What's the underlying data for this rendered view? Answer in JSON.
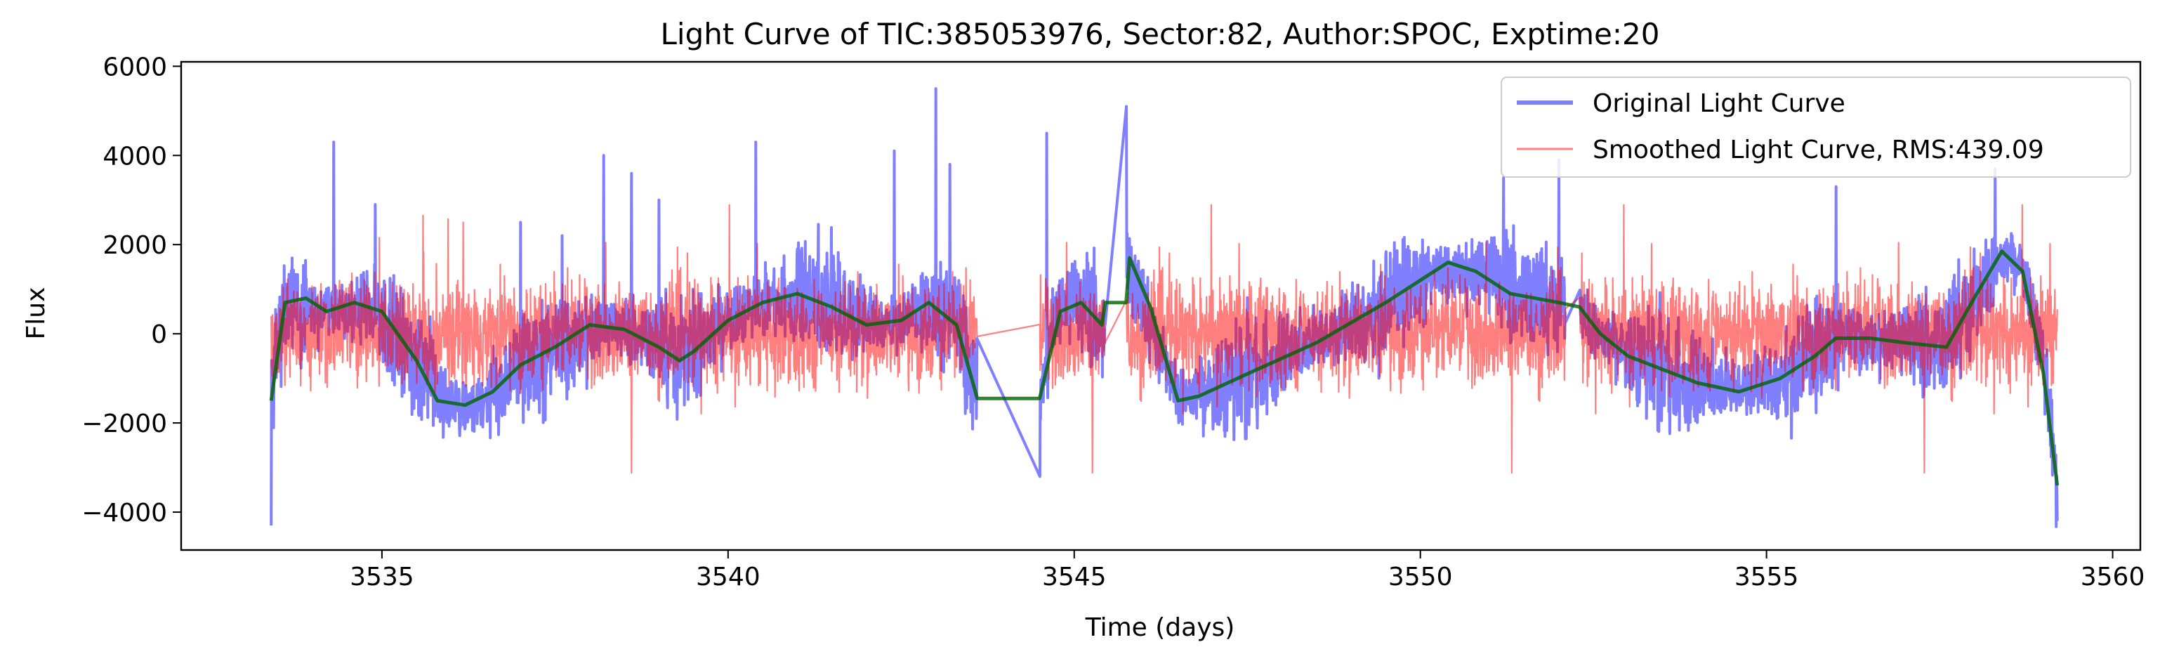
{
  "chart_data": {
    "type": "line",
    "title": "Light Curve of TIC:385053976, Sector:82, Author:SPOC, Exptime:20",
    "xlabel": "Time (days)",
    "ylabel": "Flux",
    "xlim": [
      3532.1,
      3560.4
    ],
    "ylim": [
      -4850,
      6100
    ],
    "x_ticks": [
      3535,
      3540,
      3545,
      3550,
      3555,
      3560
    ],
    "y_ticks": [
      -4000,
      -2000,
      0,
      2000,
      4000,
      6000
    ],
    "grid": false,
    "legend_position": "top-right",
    "time_range": [
      3533.4,
      3559.2
    ],
    "gaps": [
      [
        3543.6,
        3544.5
      ],
      [
        3545.45,
        3545.75
      ],
      [
        3552.1,
        3552.3
      ]
    ],
    "series": [
      {
        "name": "Original Light Curve",
        "color": "#0000ff",
        "alpha": 0.5,
        "noise_amplitude": 900,
        "baseline_points": [
          [
            3533.4,
            -1400
          ],
          [
            3533.6,
            700
          ],
          [
            3534.0,
            600
          ],
          [
            3534.5,
            600
          ],
          [
            3535.0,
            300
          ],
          [
            3535.5,
            -700
          ],
          [
            3536.0,
            -1700
          ],
          [
            3536.5,
            -1500
          ],
          [
            3537.0,
            -800
          ],
          [
            3537.5,
            -300
          ],
          [
            3538.0,
            100
          ],
          [
            3538.5,
            100
          ],
          [
            3539.0,
            -200
          ],
          [
            3539.3,
            -500
          ],
          [
            3539.5,
            -300
          ],
          [
            3540.0,
            300
          ],
          [
            3540.5,
            700
          ],
          [
            3541.0,
            900
          ],
          [
            3541.5,
            700
          ],
          [
            3542.0,
            300
          ],
          [
            3542.5,
            300
          ],
          [
            3543.0,
            600
          ],
          [
            3543.3,
            300
          ],
          [
            3543.6,
            -1100
          ],
          [
            3544.5,
            -1500
          ],
          [
            3544.7,
            400
          ],
          [
            3545.0,
            700
          ],
          [
            3545.3,
            500
          ],
          [
            3545.45,
            -200
          ],
          [
            3545.75,
            1600
          ],
          [
            3546.0,
            600
          ],
          [
            3546.5,
            -1400
          ],
          [
            3547.0,
            -1300
          ],
          [
            3548.0,
            -500
          ],
          [
            3549.0,
            200
          ],
          [
            3549.5,
            700
          ],
          [
            3550.0,
            1200
          ],
          [
            3550.5,
            1500
          ],
          [
            3551.0,
            1300
          ],
          [
            3551.5,
            900
          ],
          [
            3552.1,
            700
          ],
          [
            3552.3,
            600
          ],
          [
            3552.5,
            100
          ],
          [
            3553.0,
            -500
          ],
          [
            3554.0,
            -1100
          ],
          [
            3554.5,
            -1200
          ],
          [
            3555.0,
            -1100
          ],
          [
            3555.5,
            -700
          ],
          [
            3556.0,
            -100
          ],
          [
            3556.5,
            -100
          ],
          [
            3557.0,
            -200
          ],
          [
            3557.5,
            -300
          ],
          [
            3558.0,
            800
          ],
          [
            3558.4,
            1700
          ],
          [
            3558.7,
            1500
          ],
          [
            3559.0,
            -600
          ],
          [
            3559.2,
            -3400
          ]
        ],
        "spikes": [
          [
            3533.4,
            -4300
          ],
          [
            3534.3,
            4300
          ],
          [
            3534.9,
            2900
          ],
          [
            3537.0,
            2500
          ],
          [
            3537.6,
            2200
          ],
          [
            3538.2,
            4000
          ],
          [
            3538.6,
            3600
          ],
          [
            3539.0,
            3000
          ],
          [
            3540.4,
            4300
          ],
          [
            3542.4,
            4100
          ],
          [
            3543.0,
            5500
          ],
          [
            3543.2,
            3800
          ],
          [
            3543.6,
            -3200
          ],
          [
            3544.6,
            4500
          ],
          [
            3545.5,
            2000
          ],
          [
            3545.75,
            5100
          ],
          [
            3551.2,
            3500
          ],
          [
            3552.0,
            3900
          ],
          [
            3556.0,
            3300
          ],
          [
            3558.3,
            3700
          ],
          [
            3559.2,
            -4200
          ]
        ]
      },
      {
        "name": "Smoothed Light Curve, RMS:439.09",
        "color": "#ff0000",
        "alpha": 0.5,
        "noise_amplitude": 1200
      },
      {
        "name": "",
        "color": "#006400",
        "points": [
          [
            3533.4,
            -1500
          ],
          [
            3533.6,
            700
          ],
          [
            3533.9,
            800
          ],
          [
            3534.2,
            500
          ],
          [
            3534.6,
            700
          ],
          [
            3535.0,
            500
          ],
          [
            3535.5,
            -600
          ],
          [
            3535.8,
            -1500
          ],
          [
            3536.2,
            -1600
          ],
          [
            3536.6,
            -1300
          ],
          [
            3537.0,
            -700
          ],
          [
            3537.5,
            -300
          ],
          [
            3538.0,
            200
          ],
          [
            3538.5,
            100
          ],
          [
            3539.0,
            -300
          ],
          [
            3539.3,
            -600
          ],
          [
            3539.5,
            -400
          ],
          [
            3540.0,
            300
          ],
          [
            3540.5,
            700
          ],
          [
            3541.0,
            900
          ],
          [
            3541.5,
            600
          ],
          [
            3542.0,
            200
          ],
          [
            3542.5,
            300
          ],
          [
            3542.9,
            700
          ],
          [
            3543.3,
            200
          ],
          [
            3543.6,
            -1450
          ],
          [
            3544.5,
            -1450
          ],
          [
            3544.8,
            500
          ],
          [
            3545.1,
            700
          ],
          [
            3545.4,
            200
          ],
          [
            3545.45,
            700
          ],
          [
            3545.75,
            700
          ],
          [
            3545.8,
            1700
          ],
          [
            3546.1,
            600
          ],
          [
            3546.5,
            -1500
          ],
          [
            3546.8,
            -1400
          ],
          [
            3547.5,
            -900
          ],
          [
            3548.5,
            -200
          ],
          [
            3549.5,
            700
          ],
          [
            3550.0,
            1200
          ],
          [
            3550.4,
            1600
          ],
          [
            3550.8,
            1400
          ],
          [
            3551.3,
            900
          ],
          [
            3552.0,
            700
          ],
          [
            3552.3,
            600
          ],
          [
            3552.6,
            0
          ],
          [
            3553.0,
            -500
          ],
          [
            3554.0,
            -1100
          ],
          [
            3554.6,
            -1300
          ],
          [
            3555.2,
            -1000
          ],
          [
            3555.7,
            -500
          ],
          [
            3556.0,
            -100
          ],
          [
            3556.5,
            -100
          ],
          [
            3557.0,
            -200
          ],
          [
            3557.6,
            -300
          ],
          [
            3558.0,
            800
          ],
          [
            3558.4,
            1850
          ],
          [
            3558.7,
            1400
          ],
          [
            3559.0,
            -900
          ],
          [
            3559.2,
            -3400
          ]
        ]
      }
    ]
  }
}
